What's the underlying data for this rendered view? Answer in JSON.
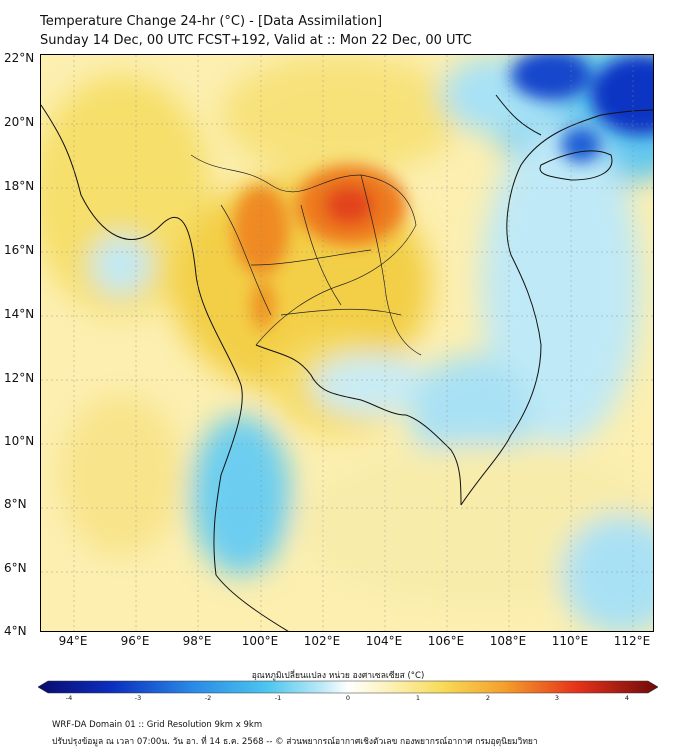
{
  "header": {
    "line1": "Temperature Change 24-hr (°C) - [Data Assimilation]",
    "line2": "Sunday 14 Dec, 00 UTC FCST+192, Valid at :: Mon 22 Dec, 00 UTC"
  },
  "axes": {
    "y_labels": [
      "22°N",
      "20°N",
      "18°N",
      "16°N",
      "14°N",
      "12°N",
      "10°N",
      "8°N",
      "6°N",
      "4°N"
    ],
    "x_labels": [
      "94°E",
      "96°E",
      "98°E",
      "100°E",
      "102°E",
      "104°E",
      "106°E",
      "108°E",
      "110°E",
      "112°E"
    ]
  },
  "colorbar": {
    "title": "อุณหภูมิเปลี่ยนแปลง หน่วย องศาเซลเซียส (°C)",
    "ticks": [
      "-4",
      "-3",
      "-2",
      "-1",
      "0",
      "1",
      "2",
      "3",
      "4"
    ],
    "min": -4,
    "max": 4
  },
  "footer": {
    "line1": "WRF-DA Domain 01 :: Grid Resolution 9km x 9km",
    "line2": "ปรับปรุงข้อมูล ณ เวลา 07:00น. วัน อา. ที่ 14 ธ.ค. 2568 -- © ส่วนพยากรณ์อากาศเชิงตัวเลข กองพยากรณ์อากาศ กรมอุตุนิยมวิทยา"
  },
  "colors": {
    "neutral": "#fdf6d2",
    "warm_light": "#f7e27a",
    "warm": "#f0c83c",
    "hot": "#ee6a1a",
    "cool_light": "#bfe9f6",
    "cool": "#59c8ee",
    "cold": "#0b2fbf",
    "coast": "#111111"
  }
}
